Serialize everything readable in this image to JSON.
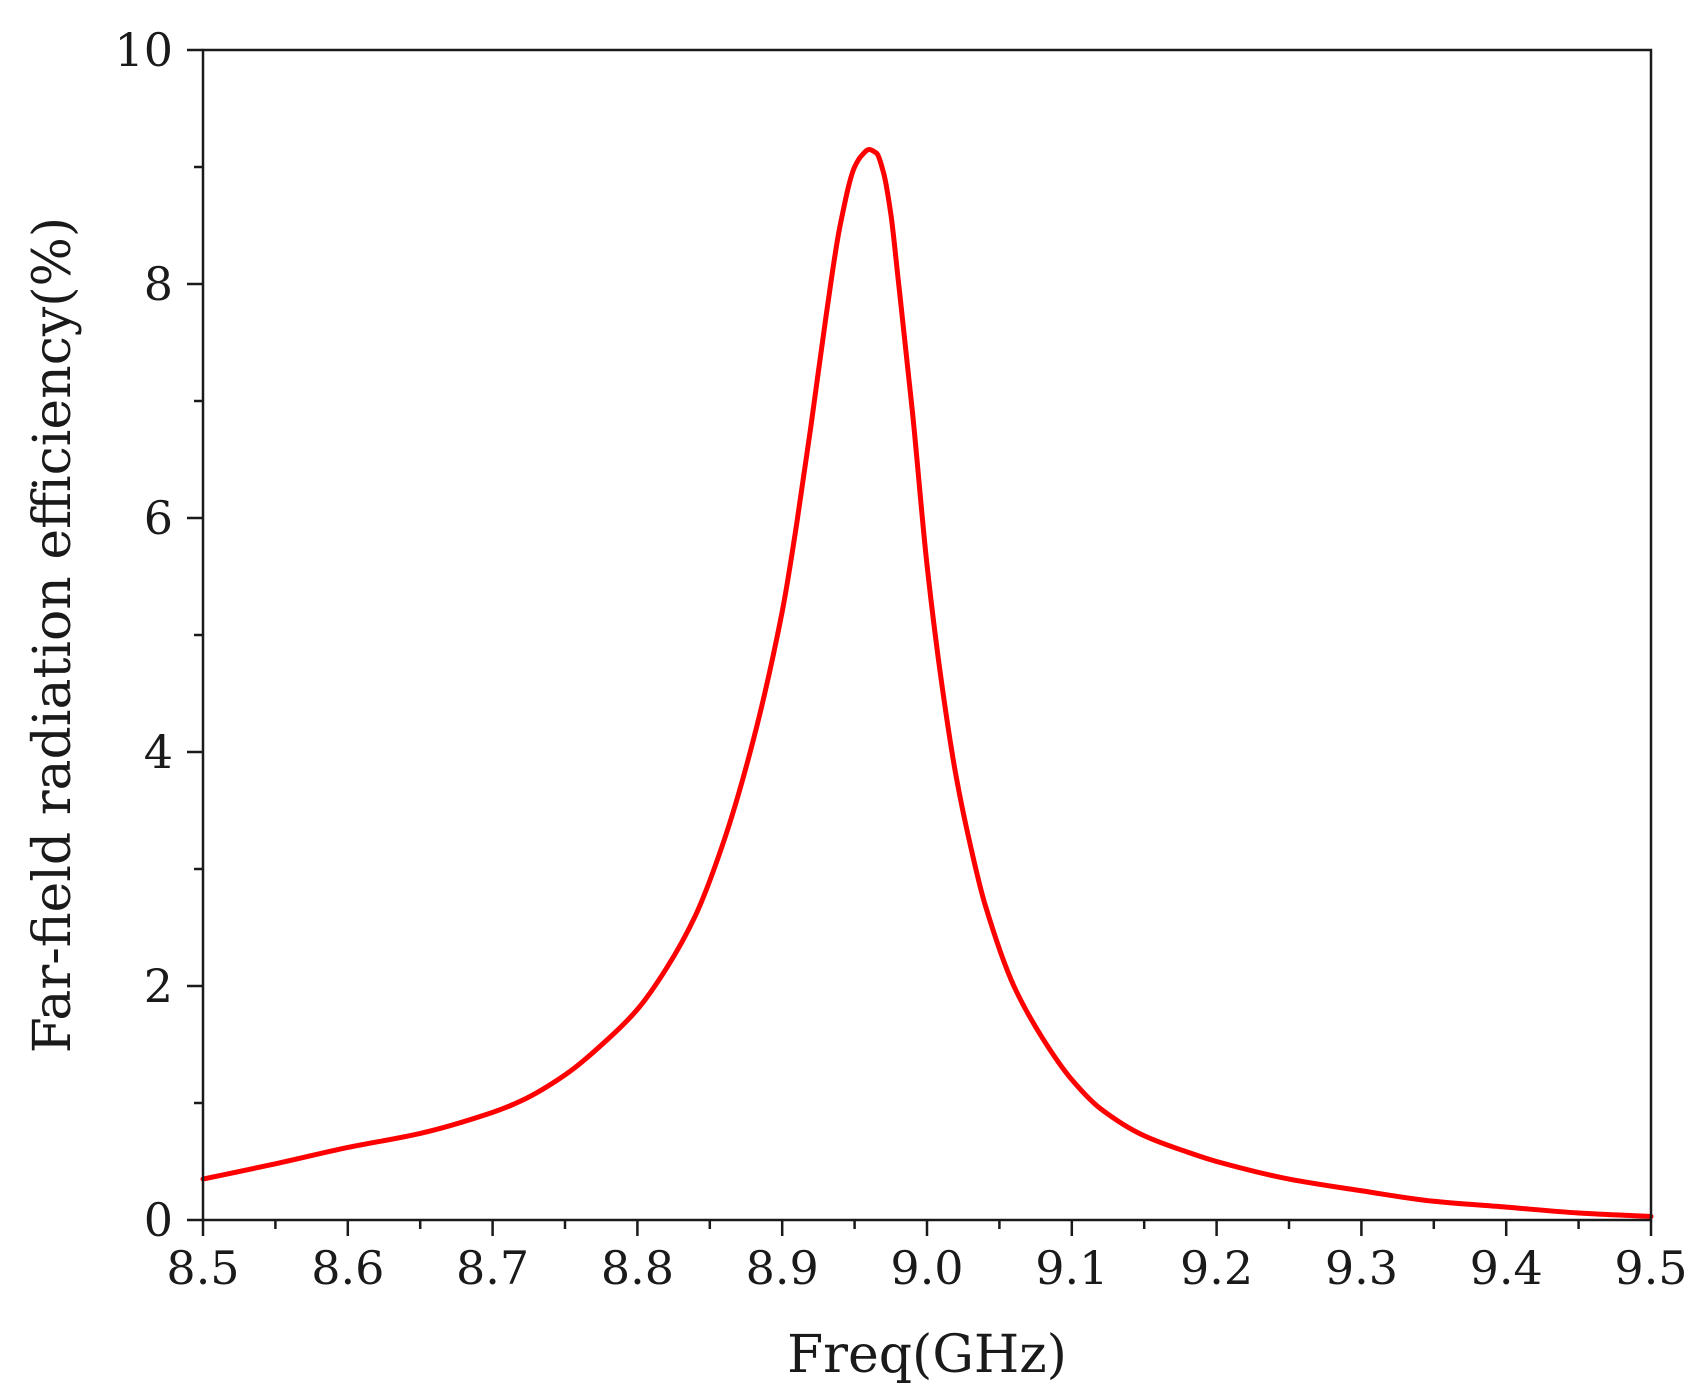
{
  "chart_data": {
    "type": "line",
    "title": "",
    "xlabel": "Freq(GHz)",
    "ylabel": "Far-field radiation efficiency(%)",
    "xlim": [
      8.5,
      9.5
    ],
    "ylim": [
      0,
      10
    ],
    "x_ticks": [
      8.5,
      8.6,
      8.7,
      8.8,
      8.9,
      9.0,
      9.1,
      9.2,
      9.3,
      9.4,
      9.5
    ],
    "x_tick_labels": [
      "8.5",
      "8.6",
      "8.7",
      "8.8",
      "8.9",
      "9.0",
      "9.1",
      "9.2",
      "9.3",
      "9.4",
      "9.5"
    ],
    "y_ticks": [
      0,
      2,
      4,
      6,
      8,
      10
    ],
    "y_tick_labels": [
      "0",
      "2",
      "4",
      "6",
      "8",
      "10"
    ],
    "grid": false,
    "legend": "none",
    "series": [
      {
        "color": "#ff0000",
        "x": [
          8.5,
          8.55,
          8.6,
          8.65,
          8.7,
          8.72,
          8.75,
          8.78,
          8.8,
          8.82,
          8.84,
          8.86,
          8.88,
          8.9,
          8.91,
          8.92,
          8.93,
          8.94,
          8.95,
          8.955,
          8.96,
          8.965,
          8.97,
          8.975,
          8.98,
          8.99,
          9.0,
          9.01,
          9.02,
          9.03,
          9.04,
          9.06,
          9.08,
          9.1,
          9.12,
          9.15,
          9.18,
          9.2,
          9.25,
          9.3,
          9.35,
          9.4,
          9.45,
          9.5
        ],
        "y": [
          0.35,
          0.48,
          0.62,
          0.74,
          0.92,
          1.02,
          1.24,
          1.55,
          1.8,
          2.15,
          2.6,
          3.25,
          4.1,
          5.2,
          5.95,
          6.8,
          7.7,
          8.5,
          9.0,
          9.1,
          9.15,
          9.12,
          8.95,
          8.6,
          8.05,
          6.9,
          5.6,
          4.6,
          3.8,
          3.2,
          2.7,
          2.0,
          1.55,
          1.2,
          0.95,
          0.72,
          0.58,
          0.5,
          0.35,
          0.25,
          0.16,
          0.11,
          0.06,
          0.03
        ]
      }
    ]
  }
}
